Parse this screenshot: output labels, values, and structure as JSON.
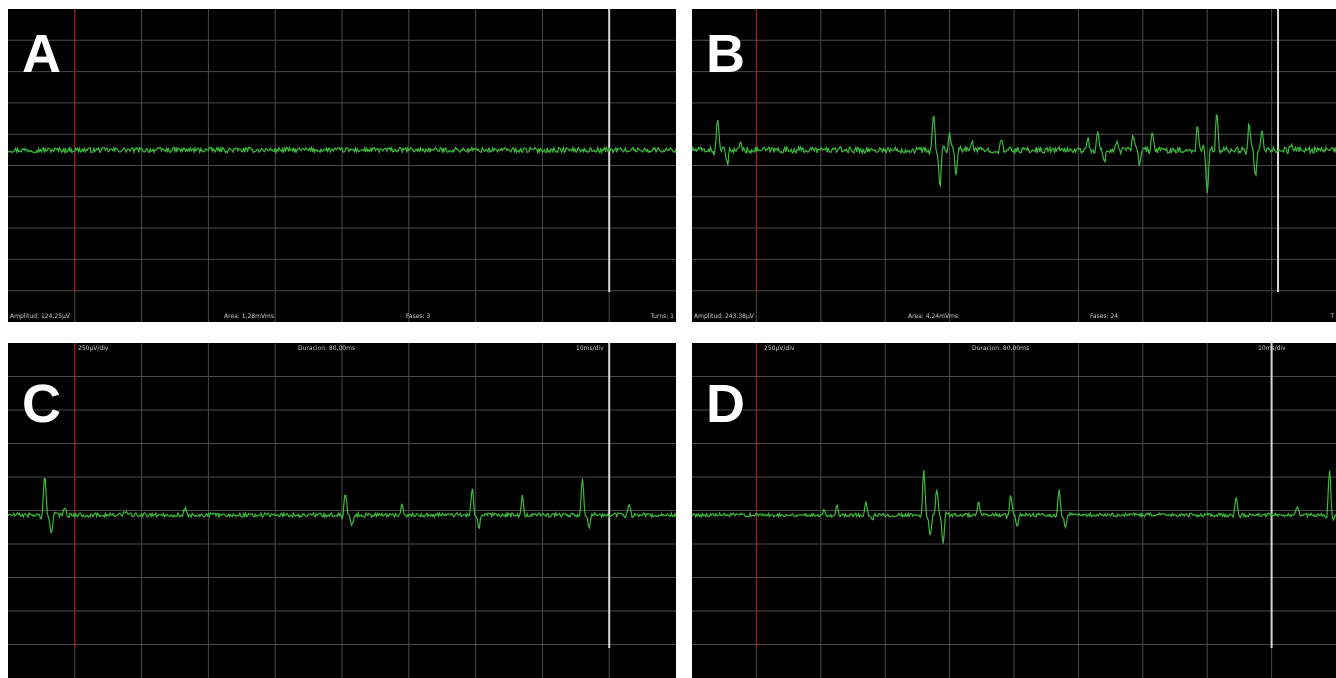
{
  "colors": {
    "background": "#000000",
    "grid": "#4a4a4a",
    "trace": "#3cb83c",
    "left_cursor": "#c01818",
    "right_cursor": "#d8d8d8",
    "label": "#ffffff"
  },
  "panels": [
    {
      "id": "A",
      "letter": "A",
      "top_left": "",
      "top_center": "",
      "top_right": "",
      "bottom_1": "Amplitud: 124,25µV",
      "bottom_2": "Area: 1,28mVms",
      "bottom_3": "Fases: 3",
      "bottom_4": "Turns: 1"
    },
    {
      "id": "B",
      "letter": "B",
      "top_left": "",
      "top_center": "",
      "top_right": "",
      "bottom_1": "Amplitud: 243,38µV",
      "bottom_2": "Area: 4,24mVms",
      "bottom_3": "Fases: 24",
      "bottom_4": "T"
    },
    {
      "id": "C",
      "letter": "C",
      "top_left": "250µV/div",
      "top_center": "Duracion: 80,00ms",
      "top_right": "10ms/div",
      "bottom_1": "",
      "bottom_2": "",
      "bottom_3": "",
      "bottom_4": ""
    },
    {
      "id": "D",
      "letter": "D",
      "top_left": "250µV/div",
      "top_center": "Duracion: 80,00ms",
      "top_right": "10ms/div",
      "bottom_1": "",
      "bottom_2": "",
      "bottom_3": "",
      "bottom_4": ""
    }
  ],
  "chart_data": [
    {
      "type": "line",
      "panel": "A",
      "grid": true,
      "x_range_ms": [
        0,
        100
      ],
      "y_range_uV": [
        -1000,
        1000
      ],
      "cursors_ms": [
        10,
        90
      ],
      "baseline_uV": 0,
      "noise_uV": 18,
      "events": []
    },
    {
      "type": "line",
      "panel": "B",
      "grid": true,
      "x_range_ms": [
        0,
        100
      ],
      "y_range_uV": [
        -1000,
        1000
      ],
      "cursors_ms": [
        10,
        91
      ],
      "baseline_uV": 0,
      "noise_uV": 22,
      "events": [
        {
          "t": 4.0,
          "amp": 230
        },
        {
          "t": 5.5,
          "amp": -110
        },
        {
          "t": 7.5,
          "amp": 60
        },
        {
          "t": 37.5,
          "amp": 270
        },
        {
          "t": 38.5,
          "amp": -260
        },
        {
          "t": 40.0,
          "amp": 120
        },
        {
          "t": 41.0,
          "amp": -180
        },
        {
          "t": 43.5,
          "amp": 70
        },
        {
          "t": 48.0,
          "amp": 60
        },
        {
          "t": 61.5,
          "amp": 80
        },
        {
          "t": 63.0,
          "amp": 120
        },
        {
          "t": 64.0,
          "amp": -90
        },
        {
          "t": 66.0,
          "amp": 60
        },
        {
          "t": 68.5,
          "amp": 110
        },
        {
          "t": 69.5,
          "amp": -100
        },
        {
          "t": 71.5,
          "amp": 130
        },
        {
          "t": 78.5,
          "amp": 180
        },
        {
          "t": 80.0,
          "amp": -300
        },
        {
          "t": 81.5,
          "amp": 260
        },
        {
          "t": 86.5,
          "amp": 180
        },
        {
          "t": 87.5,
          "amp": -200
        },
        {
          "t": 88.5,
          "amp": 120
        },
        {
          "t": 93.0,
          "amp": 40
        }
      ]
    },
    {
      "type": "line",
      "panel": "C",
      "grid": true,
      "x_range_ms": [
        0,
        100
      ],
      "y_range_uV": [
        -1000,
        1000
      ],
      "cursors_ms": [
        10,
        90
      ],
      "baseline_uV": 0,
      "noise_uV": 14,
      "events": [
        {
          "t": 5.5,
          "amp": 250
        },
        {
          "t": 6.5,
          "amp": -110
        },
        {
          "t": 8.5,
          "amp": 60
        },
        {
          "t": 17.5,
          "amp": 30
        },
        {
          "t": 26.5,
          "amp": 40
        },
        {
          "t": 50.5,
          "amp": 150
        },
        {
          "t": 51.5,
          "amp": -60
        },
        {
          "t": 59.0,
          "amp": 70
        },
        {
          "t": 69.5,
          "amp": 180
        },
        {
          "t": 70.5,
          "amp": -80
        },
        {
          "t": 77.0,
          "amp": 120
        },
        {
          "t": 86.0,
          "amp": 240
        },
        {
          "t": 87.0,
          "amp": -90
        },
        {
          "t": 93.0,
          "amp": 80
        }
      ]
    },
    {
      "type": "line",
      "panel": "D",
      "grid": true,
      "x_range_ms": [
        0,
        100
      ],
      "y_range_uV": [
        -1000,
        1000
      ],
      "cursors_ms": [
        10,
        90
      ],
      "baseline_uV": 0,
      "noise_uV": 12,
      "events": [
        {
          "t": 20.5,
          "amp": 40
        },
        {
          "t": 22.5,
          "amp": 60
        },
        {
          "t": 27.0,
          "amp": 80
        },
        {
          "t": 28.0,
          "amp": -40
        },
        {
          "t": 36.0,
          "amp": 290
        },
        {
          "t": 37.0,
          "amp": -130
        },
        {
          "t": 38.0,
          "amp": 170
        },
        {
          "t": 39.0,
          "amp": -180
        },
        {
          "t": 44.5,
          "amp": 80
        },
        {
          "t": 49.5,
          "amp": 130
        },
        {
          "t": 50.5,
          "amp": -70
        },
        {
          "t": 57.0,
          "amp": 170
        },
        {
          "t": 58.0,
          "amp": -80
        },
        {
          "t": 84.5,
          "amp": 120
        },
        {
          "t": 94.0,
          "amp": 60
        },
        {
          "t": 99.0,
          "amp": 300
        }
      ]
    }
  ]
}
